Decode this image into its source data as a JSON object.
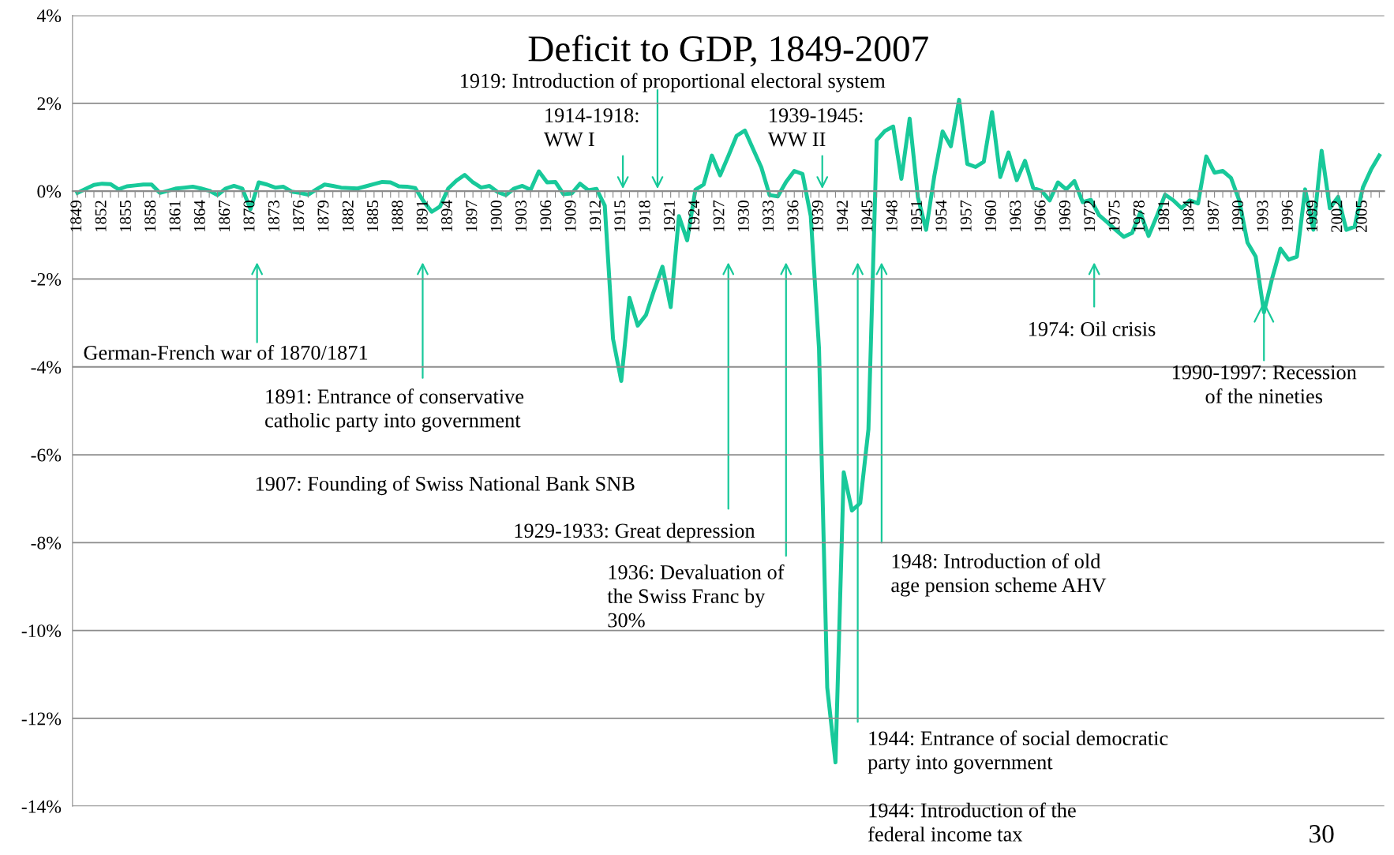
{
  "chart_data": {
    "type": "line",
    "title": "Deficit to GDP, 1849-2007",
    "categories": [
      "1849",
      null,
      null,
      "1852",
      null,
      null,
      "1855",
      null,
      null,
      "1858",
      null,
      null,
      "1861",
      null,
      null,
      "1864",
      null,
      null,
      "1867",
      null,
      null,
      "1870",
      null,
      null,
      "1873",
      null,
      null,
      "1876",
      null,
      null,
      "1879",
      null,
      null,
      "1882",
      null,
      null,
      "1885",
      null,
      null,
      "1888",
      null,
      null,
      "1891",
      null,
      null,
      "1894",
      null,
      null,
      "1897",
      null,
      null,
      "1900",
      null,
      null,
      "1903",
      null,
      null,
      "1906",
      null,
      null,
      "1909",
      null,
      null,
      "1912",
      null,
      null,
      "1915",
      null,
      null,
      "1918",
      null,
      null,
      "1921",
      null,
      null,
      "1924",
      null,
      null,
      "1927",
      null,
      null,
      "1930",
      null,
      null,
      "1933",
      null,
      null,
      "1936",
      null,
      null,
      "1939",
      null,
      null,
      "1942",
      null,
      null,
      "1945",
      null,
      null,
      "1948",
      null,
      null,
      "1951",
      null,
      null,
      "1954",
      null,
      null,
      "1957",
      null,
      null,
      "1960",
      null,
      null,
      "1963",
      null,
      null,
      "1966",
      null,
      null,
      "1969",
      null,
      null,
      "1972",
      null,
      null,
      "1975",
      null,
      null,
      "1978",
      null,
      null,
      "1981",
      null,
      null,
      "1984",
      null,
      null,
      "1987",
      null,
      null,
      "1990",
      null,
      null,
      "1993",
      null,
      null,
      "1996",
      null,
      null,
      "1999",
      null,
      null,
      "2002",
      null,
      null,
      "2005",
      null,
      null
    ],
    "series": [
      {
        "color": "#18c99a",
        "values": [
          -0.04,
          0.05,
          0.14,
          0.17,
          0.16,
          0.04,
          0.11,
          0.13,
          0.15,
          0.15,
          -0.04,
          0.01,
          0.06,
          0.08,
          0.1,
          0.06,
          0.01,
          -0.09,
          0.06,
          0.12,
          0.06,
          -0.41,
          0.2,
          0.15,
          0.08,
          0.1,
          -0.01,
          -0.04,
          -0.08,
          0.04,
          0.15,
          0.12,
          0.08,
          0.07,
          0.06,
          0.11,
          0.16,
          0.21,
          0.2,
          0.11,
          0.1,
          0.07,
          -0.23,
          -0.47,
          -0.35,
          0.06,
          0.24,
          0.37,
          0.2,
          0.08,
          0.12,
          -0.02,
          -0.09,
          0.06,
          0.12,
          0.03,
          0.45,
          0.2,
          0.21,
          -0.07,
          -0.05,
          0.17,
          0.02,
          0.05,
          -0.33,
          -3.36,
          -4.32,
          -2.43,
          -3.06,
          -2.82,
          -2.25,
          -1.72,
          -2.64,
          -0.57,
          -1.12,
          0.03,
          0.15,
          0.81,
          0.36,
          0.8,
          1.26,
          1.38,
          0.96,
          0.54,
          -0.09,
          -0.12,
          0.21,
          0.46,
          0.39,
          -0.57,
          -3.58,
          -11.3,
          -13.0,
          -6.4,
          -7.27,
          -7.1,
          -5.42,
          1.16,
          1.37,
          1.47,
          0.28,
          1.65,
          -0.14,
          -0.88,
          0.35,
          1.36,
          1.02,
          2.08,
          0.62,
          0.55,
          0.67,
          1.8,
          0.32,
          0.88,
          0.25,
          0.69,
          0.07,
          0.01,
          -0.21,
          0.2,
          0.04,
          0.23,
          -0.25,
          -0.2,
          -0.55,
          -0.71,
          -0.88,
          -1.04,
          -0.95,
          -0.48,
          -1.02,
          -0.57,
          -0.08,
          -0.21,
          -0.39,
          -0.21,
          -0.28,
          0.79,
          0.42,
          0.46,
          0.3,
          -0.21,
          -1.17,
          -1.49,
          -2.76,
          -1.98,
          -1.31,
          -1.56,
          -1.49,
          0.04,
          -0.88,
          0.92,
          -0.39,
          -0.13,
          -0.88,
          -0.81,
          0.08,
          0.49,
          0.81
        ]
      }
    ],
    "ylim": [
      -14,
      4
    ],
    "yticks": [
      {
        "value": -14,
        "label": "-14%"
      },
      {
        "value": -12,
        "label": "-12%"
      },
      {
        "value": -10,
        "label": "-10%"
      },
      {
        "value": -8,
        "label": "-8%"
      },
      {
        "value": -6,
        "label": "-6%"
      },
      {
        "value": -4,
        "label": "-4%"
      },
      {
        "value": -2,
        "label": "-2%"
      },
      {
        "value": 0,
        "label": "0%"
      },
      {
        "value": 2,
        "label": "2%"
      },
      {
        "value": 4,
        "label": "4%"
      }
    ],
    "grid": "y",
    "marker": "none",
    "line_style": "solid",
    "annotations": [
      "1919: Introduction of proportional electoral system",
      "1914-1918:\nWW I",
      "1939-1945:\nWW II",
      "German-French war of 1870/1871",
      "1891: Entrance of conservative\ncatholic party into government",
      "1907: Founding of Swiss National Bank SNB",
      "1929-1933: Great depression",
      "1936: Devaluation of\nthe Swiss Franc by\n30%",
      "1948: Introduction of old\nage pension scheme AHV",
      "1944: Entrance of social democratic\nparty into government",
      "1944: Introduction of the\nfederal income tax",
      "1974: Oil crisis",
      {
        "text": "1990-1997: Recession\nof the nineties",
        "x": "1993",
        "y": -2.5
      },
      "30"
    ]
  }
}
